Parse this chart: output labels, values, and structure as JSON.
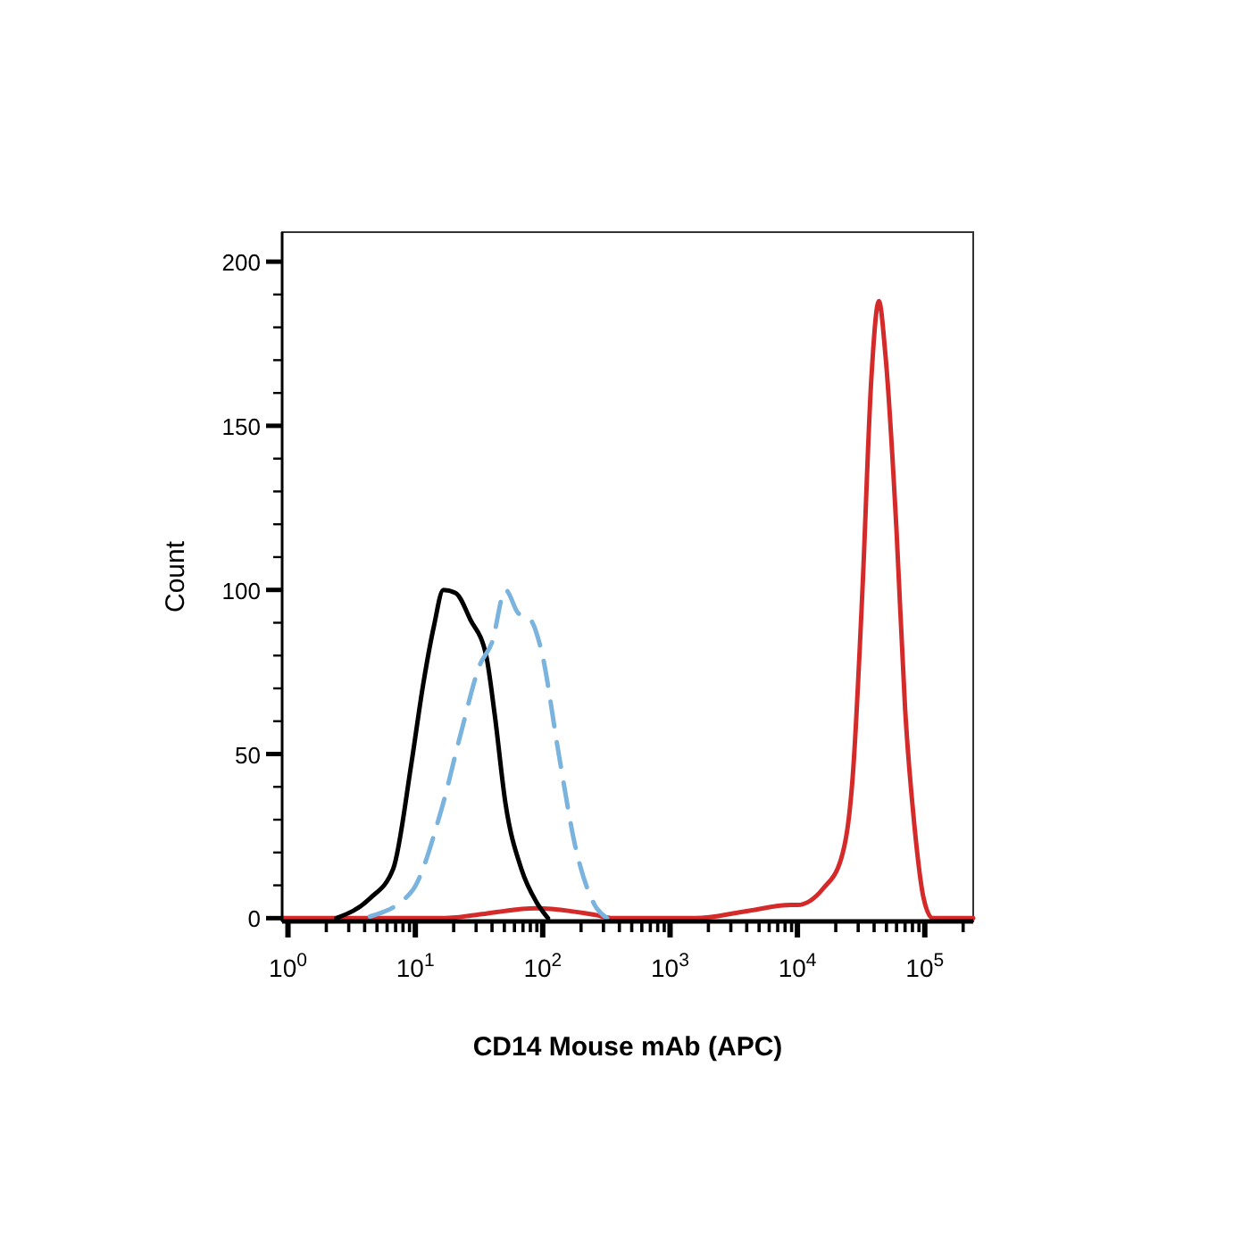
{
  "chart_data": {
    "type": "line",
    "xlabel": "CD14 Mouse mAb (APC)",
    "ylabel": "Count",
    "log": "x",
    "xlim": [
      0.9,
      240000
    ],
    "ylim": [
      -1,
      209
    ],
    "xticks": [
      {
        "value": 1,
        "label": "10$^{0}$"
      },
      {
        "value": 2,
        "label": null
      },
      {
        "value": 3,
        "label": null
      },
      {
        "value": 4,
        "label": null
      },
      {
        "value": 5,
        "label": null
      },
      {
        "value": 6,
        "label": null
      },
      {
        "value": 7,
        "label": null
      },
      {
        "value": 8,
        "label": null
      },
      {
        "value": 9,
        "label": null
      },
      {
        "value": 10,
        "label": "10$^{1}$"
      },
      {
        "value": 20,
        "label": null
      },
      {
        "value": 30,
        "label": null
      },
      {
        "value": 40,
        "label": null
      },
      {
        "value": 50,
        "label": null
      },
      {
        "value": 60,
        "label": null
      },
      {
        "value": 70,
        "label": null
      },
      {
        "value": 80,
        "label": null
      },
      {
        "value": 90,
        "label": null
      },
      {
        "value": 100,
        "label": "10$^{2}$"
      },
      {
        "value": 200,
        "label": null
      },
      {
        "value": 300,
        "label": null
      },
      {
        "value": 400,
        "label": null
      },
      {
        "value": 500,
        "label": null
      },
      {
        "value": 600,
        "label": null
      },
      {
        "value": 700,
        "label": null
      },
      {
        "value": 800,
        "label": null
      },
      {
        "value": 900,
        "label": null
      },
      {
        "value": 1000,
        "label": "10$^{3}$"
      },
      {
        "value": 2000,
        "label": null
      },
      {
        "value": 3000,
        "label": null
      },
      {
        "value": 4000,
        "label": null
      },
      {
        "value": 5000,
        "label": null
      },
      {
        "value": 6000,
        "label": null
      },
      {
        "value": 7000,
        "label": null
      },
      {
        "value": 8000,
        "label": null
      },
      {
        "value": 9000,
        "label": null
      },
      {
        "value": 10000,
        "label": "10$^{4}$"
      },
      {
        "value": 20000,
        "label": null
      },
      {
        "value": 30000,
        "label": null
      },
      {
        "value": 40000,
        "label": null
      },
      {
        "value": 50000,
        "label": null
      },
      {
        "value": 60000,
        "label": null
      },
      {
        "value": 70000,
        "label": null
      },
      {
        "value": 80000,
        "label": null
      },
      {
        "value": 90000,
        "label": null
      },
      {
        "value": 100000,
        "label": "10$^{5}$"
      },
      {
        "value": 200000,
        "label": null
      }
    ],
    "yticks": [
      0,
      {
        "value": 10,
        "label": null
      },
      {
        "value": 20,
        "label": null
      },
      {
        "value": 30,
        "label": null
      },
      {
        "value": 40,
        "label": null
      },
      50,
      {
        "value": 60,
        "label": null
      },
      {
        "value": 70,
        "label": null
      },
      {
        "value": 80,
        "label": null
      },
      {
        "value": 90,
        "label": null
      },
      100,
      {
        "value": 110,
        "label": null
      },
      {
        "value": 120,
        "label": null
      },
      {
        "value": 130,
        "label": null
      },
      {
        "value": 140,
        "label": null
      },
      150,
      {
        "value": 160,
        "label": null
      },
      {
        "value": 170,
        "label": null
      },
      {
        "value": 180,
        "label": null
      },
      {
        "value": 190,
        "label": null
      },
      200
    ],
    "series": [
      {
        "color": "#d42a2a",
        "line_style": "solid",
        "x": [
          0.9,
          17,
          30,
          89,
          257,
          355,
          1600,
          3800,
          8900,
          10000,
          15900,
          22000,
          27500,
          32400,
          38000,
          43600,
          49000,
          60000,
          70000,
          83000,
          98000,
          115000,
          240000
        ],
        "values": [
          0,
          0,
          1,
          3,
          1,
          0,
          0,
          2,
          4,
          4,
          9,
          18,
          46,
          100,
          164,
          188,
          172,
          118,
          64,
          28,
          6,
          0,
          0
        ]
      },
      {
        "color": "#000000",
        "line_style": "solid",
        "x": [
          2.4,
          4.4,
          6.7,
          9.3,
          11.5,
          14,
          16.6,
          20.8,
          27,
          36,
          42,
          51,
          68,
          89,
          110
        ],
        "values": [
          0,
          6,
          15,
          47,
          71,
          89,
          100,
          99,
          91,
          80,
          62,
          35,
          15,
          5,
          0
        ]
      },
      {
        "color": "#7ab4de",
        "line_style": "dashed",
        "x": [
          4.4,
          9.3,
          16,
          23,
          32,
          40,
          51,
          64,
          80,
          97,
          135,
          180,
          256,
          320
        ],
        "values": [
          0.5,
          8,
          33,
          57,
          77,
          84,
          100,
          93,
          91,
          82,
          49,
          22,
          4,
          0
        ]
      }
    ]
  }
}
